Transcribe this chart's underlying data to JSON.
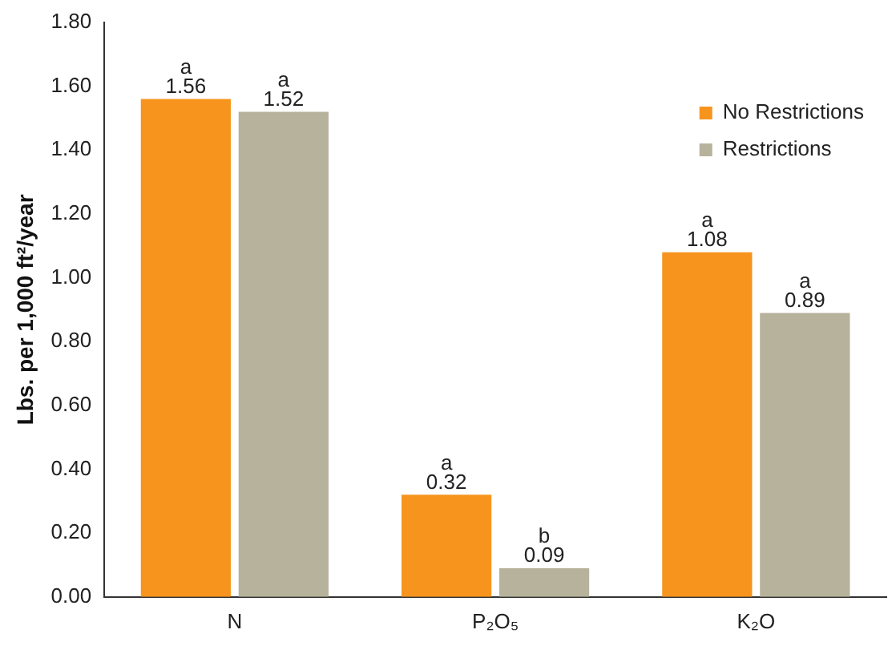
{
  "chart_data": {
    "type": "bar",
    "ylabel": "Lbs. per 1,000 ft²/year",
    "categories": [
      "N",
      "P₂O₅",
      "K₂O"
    ],
    "series": [
      {
        "name": "No Restrictions",
        "color": "#f7941d",
        "values": [
          1.56,
          0.32,
          1.08
        ]
      },
      {
        "name": "Restrictions",
        "color": "#b7b29b",
        "values": [
          1.52,
          0.09,
          0.89
        ]
      }
    ],
    "ylim": [
      0,
      1.8
    ],
    "yticks": [
      {
        "value": 0,
        "label": "0.00"
      },
      {
        "value": 0.2,
        "label": "0.20"
      },
      {
        "value": 0.4,
        "label": "0.40"
      },
      {
        "value": 0.6,
        "label": "0.60"
      },
      {
        "value": 0.8,
        "label": "0.80"
      },
      {
        "value": 1,
        "label": "1.00"
      },
      {
        "value": 1.2,
        "label": "1.20"
      },
      {
        "value": 1.4,
        "label": "1.40"
      },
      {
        "value": 1.6,
        "label": "1.60"
      },
      {
        "value": 1.8,
        "label": "1.80"
      }
    ],
    "data_labels": true,
    "grid": false,
    "legend": "top right",
    "annotations": [
      "a",
      "a",
      "a",
      "b",
      "a",
      "a"
    ]
  }
}
